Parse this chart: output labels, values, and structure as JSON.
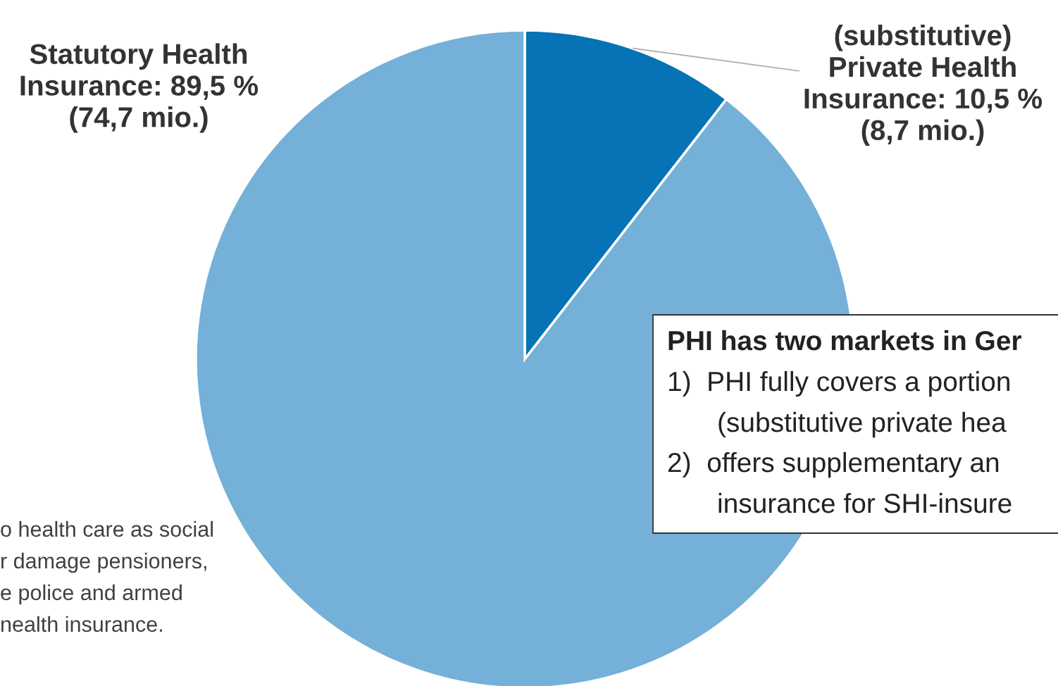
{
  "chart_data": {
    "type": "pie",
    "categories": [
      "(substitutive)\nPrivate Health\nInsurance: 10,5 %\n(8,7 mio.)",
      "Statutory Health\nInsurance: 89,5 %\n(74,7 mio.)"
    ],
    "values": [
      10.5,
      89.5
    ],
    "colors": [
      "#0573b5",
      "#74b0d7"
    ],
    "annotations": [
      "PHI has two markets in Ger",
      "1)  PHI fully covers a portion",
      "(substitutive private hea",
      "2)  offers supplementary an",
      "insurance for SHI-insure",
      "o health care as social",
      "r damage pensioners,",
      "e police and armed",
      "nealth insurance."
    ]
  }
}
